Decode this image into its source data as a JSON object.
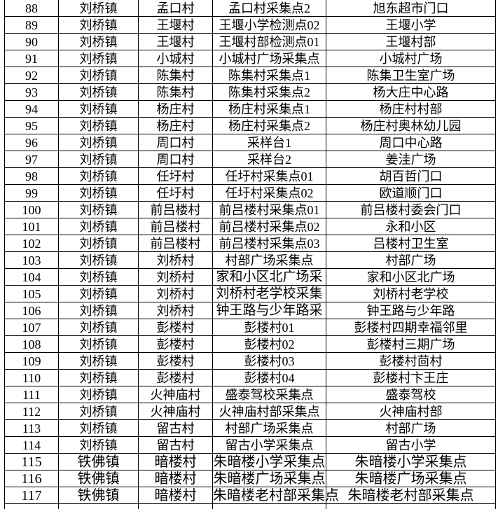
{
  "table": {
    "rows": [
      {
        "no": "88",
        "town": "刘桥镇",
        "village": "孟口村",
        "point": "孟口村采集点2",
        "location": "旭东超市门口"
      },
      {
        "no": "89",
        "town": "刘桥镇",
        "village": "王堰村",
        "point": "王堰小学检测点02",
        "location": "王堰小学"
      },
      {
        "no": "90",
        "town": "刘桥镇",
        "village": "王堰村",
        "point": "王堰村部检测点01",
        "location": "王堰村部"
      },
      {
        "no": "91",
        "town": "刘桥镇",
        "village": "小城村",
        "point": "小城村广场采集点",
        "location": "小城村广场"
      },
      {
        "no": "92",
        "town": "刘桥镇",
        "village": "陈集村",
        "point": "陈集村采集点1",
        "location": "陈集卫生室广场"
      },
      {
        "no": "93",
        "town": "刘桥镇",
        "village": "陈集村",
        "point": "陈集村采集点2",
        "location": "杨大庄中心路"
      },
      {
        "no": "94",
        "town": "刘桥镇",
        "village": "杨庄村",
        "point": "杨庄村采集点1",
        "location": "杨庄村村部"
      },
      {
        "no": "95",
        "town": "刘桥镇",
        "village": "杨庄村",
        "point": "杨庄村采集点2",
        "location": "杨庄村奥林幼儿园"
      },
      {
        "no": "96",
        "town": "刘桥镇",
        "village": "周口村",
        "point": "采样台1",
        "location": "周口中心路"
      },
      {
        "no": "97",
        "town": "刘桥镇",
        "village": "周口村",
        "point": "采样台2",
        "location": "姜洼广场"
      },
      {
        "no": "98",
        "town": "刘桥镇",
        "village": "任圩村",
        "point": "任圩村采集点01",
        "location": "胡百哲门口"
      },
      {
        "no": "99",
        "town": "刘桥镇",
        "village": "任圩村",
        "point": "任圩村采集点02",
        "location": "欧道顺门口"
      },
      {
        "no": "100",
        "town": "刘桥镇",
        "village": "前吕楼村",
        "point": "前吕楼村采集点01",
        "location": "前吕楼村委会门口"
      },
      {
        "no": "101",
        "town": "刘桥镇",
        "village": "前吕楼村",
        "point": "前吕楼村采集点02",
        "location": "永和小区"
      },
      {
        "no": "102",
        "town": "刘桥镇",
        "village": "前吕楼村",
        "point": "前吕楼村采集点03",
        "location": "吕楼村卫生室"
      },
      {
        "no": "103",
        "town": "刘桥镇",
        "village": "刘桥村",
        "point": "村部广场采集点",
        "location": "村部广场"
      },
      {
        "no": "104",
        "town": "刘桥镇",
        "village": "刘桥村",
        "point": "家和小区北广场采",
        "location": "家和小区北广场"
      },
      {
        "no": "105",
        "town": "刘桥镇",
        "village": "刘桥村",
        "point": "刘桥村老学校采集",
        "location": "刘桥村老学校"
      },
      {
        "no": "106",
        "town": "刘桥镇",
        "village": "刘桥村",
        "point": "钟王路与少年路采",
        "location": "钟王路与少年路"
      },
      {
        "no": "107",
        "town": "刘桥镇",
        "village": "彭楼村",
        "point": "彭楼村01",
        "location": "彭楼村四期幸福邻里"
      },
      {
        "no": "108",
        "town": "刘桥镇",
        "village": "彭楼村",
        "point": "彭楼村02",
        "location": "彭楼村三期广场"
      },
      {
        "no": "109",
        "town": "刘桥镇",
        "village": "彭楼村",
        "point": "彭楼村03",
        "location": "彭楼村茴村"
      },
      {
        "no": "110",
        "town": "刘桥镇",
        "village": "彭楼村",
        "point": "彭楼村04",
        "location": "彭楼村卞王庄"
      },
      {
        "no": "111",
        "town": "刘桥镇",
        "village": "火神庙村",
        "point": "盛泰驾校采集点",
        "location": "盛泰驾校"
      },
      {
        "no": "112",
        "town": "刘桥镇",
        "village": "火神庙村",
        "point": "火神庙村部采集点",
        "location": "火神庙村部"
      },
      {
        "no": "113",
        "town": "刘桥镇",
        "village": "留古村",
        "point": "村部广场采集点",
        "location": "村部广场"
      },
      {
        "no": "114",
        "town": "刘桥镇",
        "village": "留古村",
        "point": "留古小学采集点",
        "location": "留古小学"
      },
      {
        "no": "115",
        "town": "铁佛镇",
        "village": "暗楼村",
        "point": "朱暗楼小学采集点",
        "location": "朱暗楼小学采集点"
      },
      {
        "no": "116",
        "town": "铁佛镇",
        "village": "暗楼村",
        "point": "朱暗楼广场采集点",
        "location": "朱暗楼广场采集点"
      },
      {
        "no": "117",
        "town": "铁佛镇",
        "village": "暗楼村",
        "point": "朱暗楼老村部采集点",
        "location": "朱暗楼老村部采集点"
      }
    ]
  },
  "styles": {
    "border_color": "#000000",
    "text_color": "#000000",
    "background": "#ffffff"
  }
}
